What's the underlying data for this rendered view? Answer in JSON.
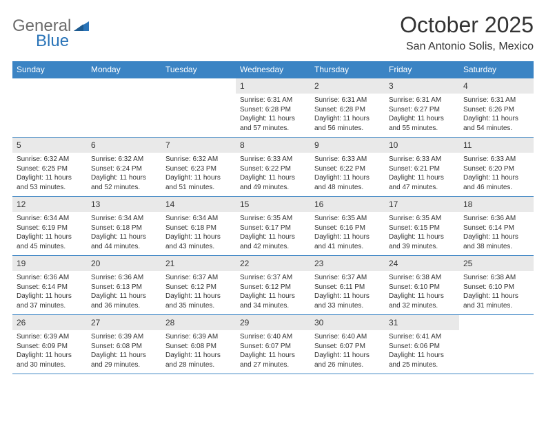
{
  "brand": {
    "part1": "General",
    "part2": "Blue"
  },
  "header": {
    "title": "October 2025",
    "location": "San Antonio Solis, Mexico"
  },
  "colors": {
    "header_bg": "#3b84c4",
    "header_fg": "#ffffff",
    "daynum_bg": "#e9e9e9",
    "border": "#3b84c4",
    "text": "#333333",
    "logo_gray": "#6b6b6b",
    "logo_blue": "#2a74b8",
    "page_bg": "#ffffff"
  },
  "weekdays": [
    "Sunday",
    "Monday",
    "Tuesday",
    "Wednesday",
    "Thursday",
    "Friday",
    "Saturday"
  ],
  "weeks": [
    [
      {
        "blank": true
      },
      {
        "blank": true
      },
      {
        "blank": true
      },
      {
        "day": "1",
        "sunrise": "Sunrise: 6:31 AM",
        "sunset": "Sunset: 6:28 PM",
        "daylight": "Daylight: 11 hours and 57 minutes."
      },
      {
        "day": "2",
        "sunrise": "Sunrise: 6:31 AM",
        "sunset": "Sunset: 6:28 PM",
        "daylight": "Daylight: 11 hours and 56 minutes."
      },
      {
        "day": "3",
        "sunrise": "Sunrise: 6:31 AM",
        "sunset": "Sunset: 6:27 PM",
        "daylight": "Daylight: 11 hours and 55 minutes."
      },
      {
        "day": "4",
        "sunrise": "Sunrise: 6:31 AM",
        "sunset": "Sunset: 6:26 PM",
        "daylight": "Daylight: 11 hours and 54 minutes."
      }
    ],
    [
      {
        "day": "5",
        "sunrise": "Sunrise: 6:32 AM",
        "sunset": "Sunset: 6:25 PM",
        "daylight": "Daylight: 11 hours and 53 minutes."
      },
      {
        "day": "6",
        "sunrise": "Sunrise: 6:32 AM",
        "sunset": "Sunset: 6:24 PM",
        "daylight": "Daylight: 11 hours and 52 minutes."
      },
      {
        "day": "7",
        "sunrise": "Sunrise: 6:32 AM",
        "sunset": "Sunset: 6:23 PM",
        "daylight": "Daylight: 11 hours and 51 minutes."
      },
      {
        "day": "8",
        "sunrise": "Sunrise: 6:33 AM",
        "sunset": "Sunset: 6:22 PM",
        "daylight": "Daylight: 11 hours and 49 minutes."
      },
      {
        "day": "9",
        "sunrise": "Sunrise: 6:33 AM",
        "sunset": "Sunset: 6:22 PM",
        "daylight": "Daylight: 11 hours and 48 minutes."
      },
      {
        "day": "10",
        "sunrise": "Sunrise: 6:33 AM",
        "sunset": "Sunset: 6:21 PM",
        "daylight": "Daylight: 11 hours and 47 minutes."
      },
      {
        "day": "11",
        "sunrise": "Sunrise: 6:33 AM",
        "sunset": "Sunset: 6:20 PM",
        "daylight": "Daylight: 11 hours and 46 minutes."
      }
    ],
    [
      {
        "day": "12",
        "sunrise": "Sunrise: 6:34 AM",
        "sunset": "Sunset: 6:19 PM",
        "daylight": "Daylight: 11 hours and 45 minutes."
      },
      {
        "day": "13",
        "sunrise": "Sunrise: 6:34 AM",
        "sunset": "Sunset: 6:18 PM",
        "daylight": "Daylight: 11 hours and 44 minutes."
      },
      {
        "day": "14",
        "sunrise": "Sunrise: 6:34 AM",
        "sunset": "Sunset: 6:18 PM",
        "daylight": "Daylight: 11 hours and 43 minutes."
      },
      {
        "day": "15",
        "sunrise": "Sunrise: 6:35 AM",
        "sunset": "Sunset: 6:17 PM",
        "daylight": "Daylight: 11 hours and 42 minutes."
      },
      {
        "day": "16",
        "sunrise": "Sunrise: 6:35 AM",
        "sunset": "Sunset: 6:16 PM",
        "daylight": "Daylight: 11 hours and 41 minutes."
      },
      {
        "day": "17",
        "sunrise": "Sunrise: 6:35 AM",
        "sunset": "Sunset: 6:15 PM",
        "daylight": "Daylight: 11 hours and 39 minutes."
      },
      {
        "day": "18",
        "sunrise": "Sunrise: 6:36 AM",
        "sunset": "Sunset: 6:14 PM",
        "daylight": "Daylight: 11 hours and 38 minutes."
      }
    ],
    [
      {
        "day": "19",
        "sunrise": "Sunrise: 6:36 AM",
        "sunset": "Sunset: 6:14 PM",
        "daylight": "Daylight: 11 hours and 37 minutes."
      },
      {
        "day": "20",
        "sunrise": "Sunrise: 6:36 AM",
        "sunset": "Sunset: 6:13 PM",
        "daylight": "Daylight: 11 hours and 36 minutes."
      },
      {
        "day": "21",
        "sunrise": "Sunrise: 6:37 AM",
        "sunset": "Sunset: 6:12 PM",
        "daylight": "Daylight: 11 hours and 35 minutes."
      },
      {
        "day": "22",
        "sunrise": "Sunrise: 6:37 AM",
        "sunset": "Sunset: 6:12 PM",
        "daylight": "Daylight: 11 hours and 34 minutes."
      },
      {
        "day": "23",
        "sunrise": "Sunrise: 6:37 AM",
        "sunset": "Sunset: 6:11 PM",
        "daylight": "Daylight: 11 hours and 33 minutes."
      },
      {
        "day": "24",
        "sunrise": "Sunrise: 6:38 AM",
        "sunset": "Sunset: 6:10 PM",
        "daylight": "Daylight: 11 hours and 32 minutes."
      },
      {
        "day": "25",
        "sunrise": "Sunrise: 6:38 AM",
        "sunset": "Sunset: 6:10 PM",
        "daylight": "Daylight: 11 hours and 31 minutes."
      }
    ],
    [
      {
        "day": "26",
        "sunrise": "Sunrise: 6:39 AM",
        "sunset": "Sunset: 6:09 PM",
        "daylight": "Daylight: 11 hours and 30 minutes."
      },
      {
        "day": "27",
        "sunrise": "Sunrise: 6:39 AM",
        "sunset": "Sunset: 6:08 PM",
        "daylight": "Daylight: 11 hours and 29 minutes."
      },
      {
        "day": "28",
        "sunrise": "Sunrise: 6:39 AM",
        "sunset": "Sunset: 6:08 PM",
        "daylight": "Daylight: 11 hours and 28 minutes."
      },
      {
        "day": "29",
        "sunrise": "Sunrise: 6:40 AM",
        "sunset": "Sunset: 6:07 PM",
        "daylight": "Daylight: 11 hours and 27 minutes."
      },
      {
        "day": "30",
        "sunrise": "Sunrise: 6:40 AM",
        "sunset": "Sunset: 6:07 PM",
        "daylight": "Daylight: 11 hours and 26 minutes."
      },
      {
        "day": "31",
        "sunrise": "Sunrise: 6:41 AM",
        "sunset": "Sunset: 6:06 PM",
        "daylight": "Daylight: 11 hours and 25 minutes."
      },
      {
        "blank": true
      }
    ]
  ]
}
